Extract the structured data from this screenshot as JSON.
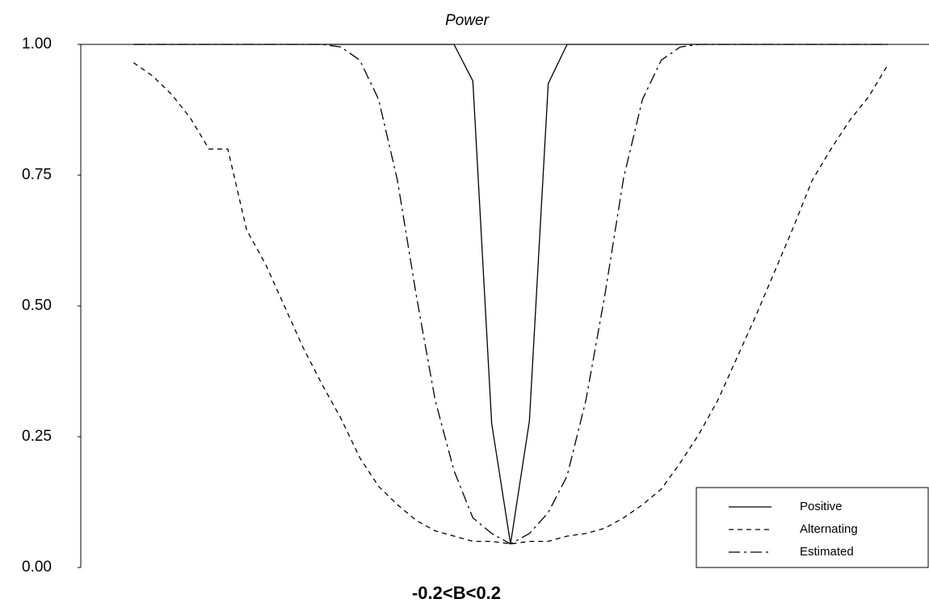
{
  "chart_data": {
    "type": "line",
    "title": "Power",
    "x_label": "-0.2<B<0.2",
    "x": [
      -0.2,
      -0.19,
      -0.18,
      -0.17,
      -0.16,
      -0.15,
      -0.14,
      -0.13,
      -0.12,
      -0.11,
      -0.1,
      -0.09,
      -0.08,
      -0.07,
      -0.06,
      -0.05,
      -0.04,
      -0.03,
      -0.02,
      -0.01,
      0,
      0.01,
      0.02,
      0.03,
      0.04,
      0.05,
      0.06,
      0.07,
      0.08,
      0.09,
      0.1,
      0.11,
      0.12,
      0.13,
      0.14,
      0.15,
      0.16,
      0.17,
      0.18,
      0.19,
      0.2
    ],
    "series": [
      {
        "name": "Positive",
        "color": "#000000",
        "dash": "none",
        "values": [
          1,
          1,
          1,
          1,
          1,
          1,
          1,
          1,
          1,
          1,
          1,
          1,
          1,
          1,
          1,
          1,
          1,
          1,
          0.93,
          0.275,
          0.045,
          0.28,
          0.925,
          1,
          1,
          1,
          1,
          1,
          1,
          1,
          1,
          1,
          1,
          1,
          1,
          1,
          1,
          1,
          1,
          1,
          1
        ]
      },
      {
        "name": "Alternating",
        "color": "#000000",
        "dash": "6,5",
        "values": [
          0.965,
          0.94,
          0.905,
          0.86,
          0.8,
          0.8,
          0.645,
          0.58,
          0.5,
          0.42,
          0.35,
          0.285,
          0.21,
          0.155,
          0.12,
          0.09,
          0.07,
          0.06,
          0.05,
          0.05,
          0.045,
          0.05,
          0.05,
          0.06,
          0.065,
          0.075,
          0.095,
          0.12,
          0.15,
          0.2,
          0.255,
          0.32,
          0.4,
          0.48,
          0.565,
          0.65,
          0.74,
          0.8,
          0.855,
          0.9,
          0.96
        ]
      },
      {
        "name": "Estimated",
        "color": "#000000",
        "dash": "14,5,3,5",
        "values": [
          1,
          1,
          1,
          1,
          1,
          1,
          1,
          1,
          1,
          1,
          1,
          0.995,
          0.97,
          0.895,
          0.74,
          0.52,
          0.32,
          0.185,
          0.095,
          0.065,
          0.045,
          0.065,
          0.105,
          0.175,
          0.32,
          0.52,
          0.745,
          0.895,
          0.97,
          0.995,
          1,
          1,
          1,
          1,
          1,
          1,
          1,
          1,
          1,
          1,
          1
        ]
      }
    ],
    "xlim": [
      -0.228,
      0.222
    ],
    "ylim": [
      0,
      1
    ],
    "yticks": [
      {
        "value": 0,
        "label": "0.00"
      },
      {
        "value": 0.25,
        "label": "0.25"
      },
      {
        "value": 0.5,
        "label": "0.50"
      },
      {
        "value": 0.75,
        "label": "0.75"
      },
      {
        "value": 1,
        "label": "1.00"
      }
    ],
    "grid": false,
    "legend": "lower-right"
  }
}
